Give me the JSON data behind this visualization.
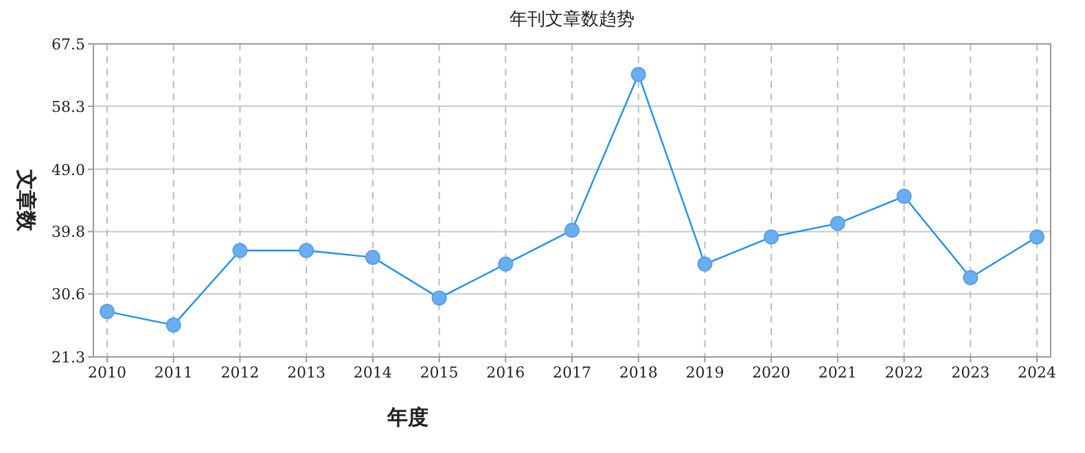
{
  "chart_data": {
    "type": "line",
    "title": "年刊文章数趋势",
    "xlabel": "年度",
    "ylabel": "文章数",
    "categories": [
      "2010",
      "2011",
      "2012",
      "2013",
      "2014",
      "2015",
      "2016",
      "2017",
      "2018",
      "2019",
      "2020",
      "2021",
      "2022",
      "2023",
      "2024"
    ],
    "series": [
      {
        "color": "#1e90ee",
        "values": [
          28,
          26,
          37,
          37,
          36,
          30,
          35,
          40,
          63,
          35,
          39,
          41,
          45,
          33,
          39
        ]
      }
    ],
    "ylim": [
      21.3,
      67.5
    ],
    "yticks": [
      21.3,
      30.6,
      39.8,
      {
        "value": 49,
        "label": "49.0"
      },
      58.3,
      67.5
    ],
    "grid": true,
    "marker": "circle",
    "line_style": "solid"
  }
}
